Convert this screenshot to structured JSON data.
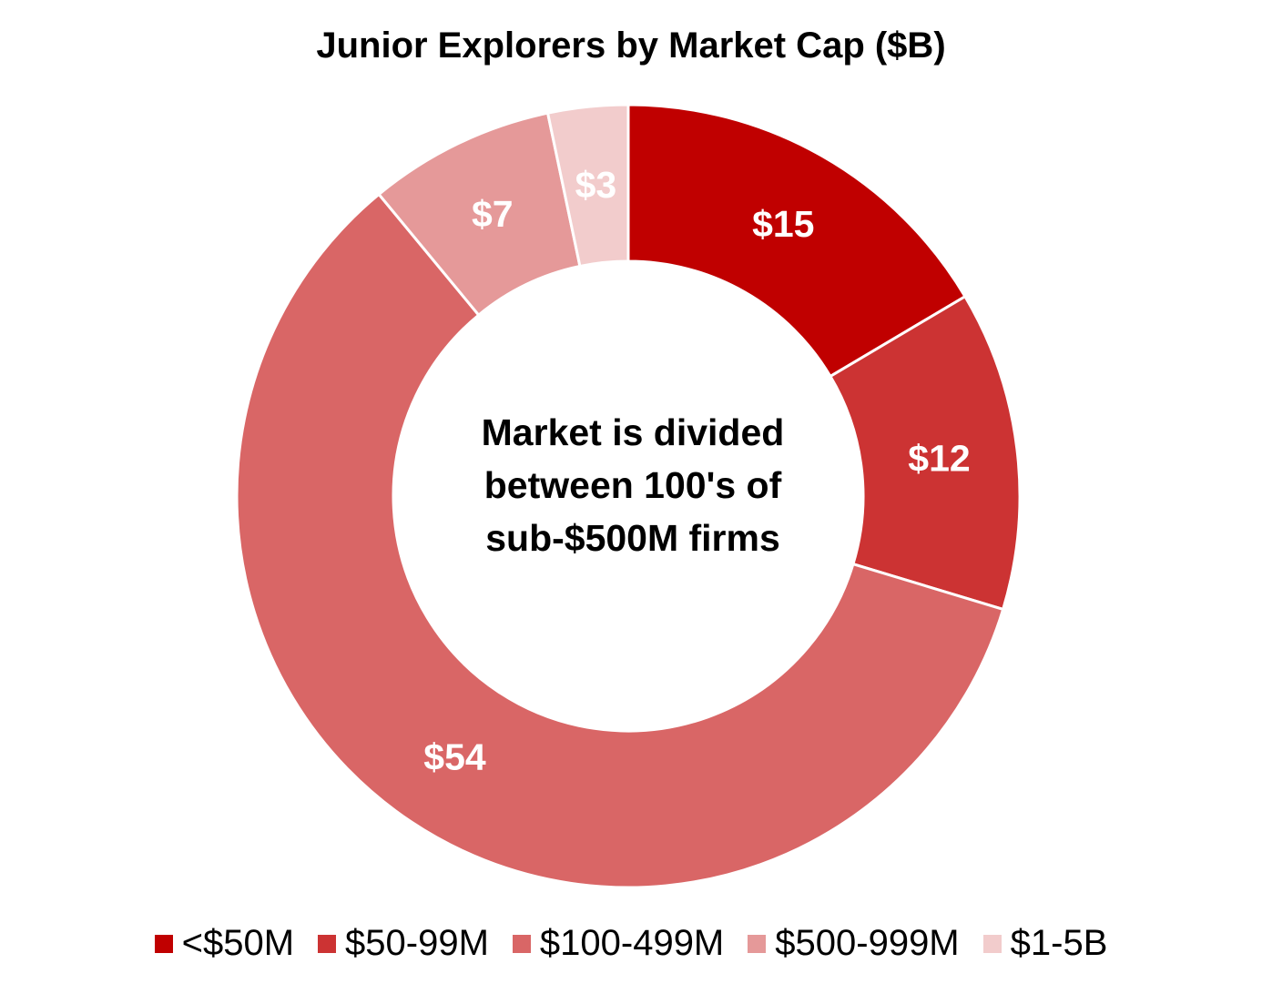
{
  "chart_data": {
    "type": "pie",
    "variant": "donut",
    "title": "Junior Explorers by Market Cap ($B)",
    "center_text": [
      "Market is divided",
      "between 100's of",
      "sub-$500M firms"
    ],
    "slices": [
      {
        "label": "<$50M",
        "value": 15,
        "data_label": "$15",
        "color": "#C00000"
      },
      {
        "label": "$50-99M",
        "value": 12,
        "data_label": "$12",
        "color": "#CC3333"
      },
      {
        "label": "$100-499M",
        "value": 54,
        "data_label": "$54",
        "color": "#D96666"
      },
      {
        "label": "$500-999M",
        "value": 7,
        "data_label": "$7",
        "color": "#E59999"
      },
      {
        "label": "$1-5B",
        "value": 3,
        "data_label": "$3",
        "color": "#F2CCCC"
      }
    ],
    "legend_position": "bottom",
    "start_angle": "12 o'clock",
    "direction": "clockwise"
  }
}
